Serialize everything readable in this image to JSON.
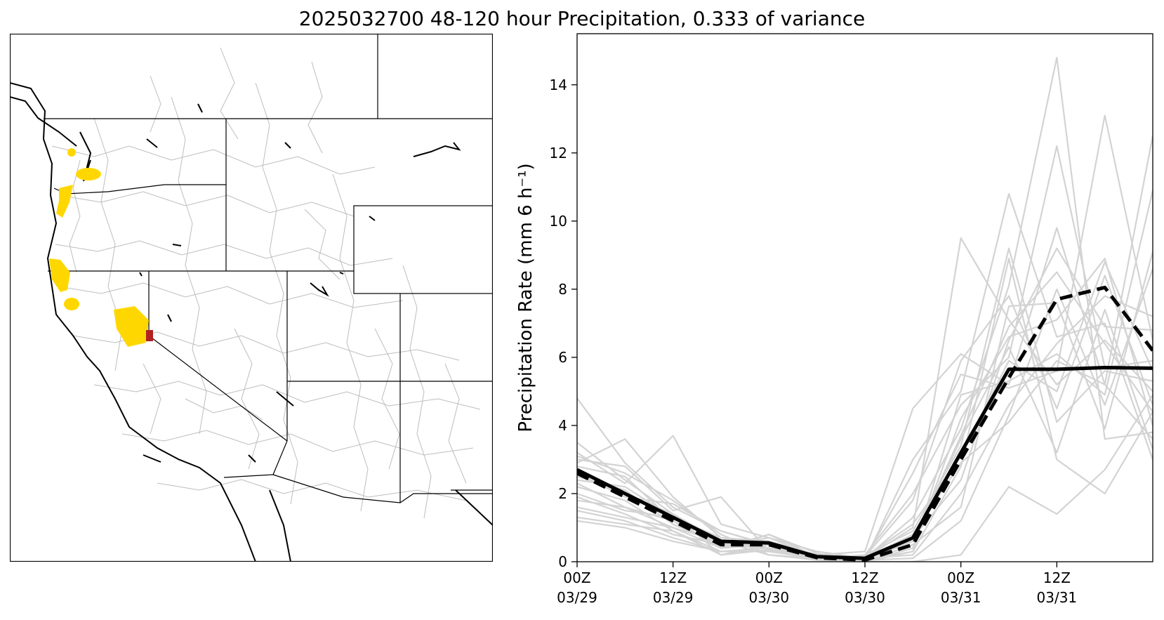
{
  "figure": {
    "title": "2025032700 48-120 hour Precipitation, 0.333 of variance"
  },
  "map": {
    "highlight_color": "#FFD700",
    "marker_color": "#B22222",
    "basin_line_color": "#BDBDBD"
  },
  "chart_data": {
    "type": "line",
    "title": "2025032700 48-120 hour Precipitation, 0.333 of variance",
    "xlabel": "",
    "ylabel": "Precipitation Rate (mm 6 h⁻¹)",
    "ylim": [
      0,
      15.5
    ],
    "y_ticks": [
      0,
      2,
      4,
      6,
      8,
      10,
      12,
      14
    ],
    "x_hours": [
      0,
      6,
      12,
      18,
      24,
      30,
      36,
      42,
      48,
      54,
      60,
      66,
      72
    ],
    "x_ticks": [
      {
        "hour": 0,
        "line1": "00Z",
        "line2": "03/29"
      },
      {
        "hour": 12,
        "line1": "12Z",
        "line2": "03/29"
      },
      {
        "hour": 24,
        "line1": "00Z",
        "line2": "03/30"
      },
      {
        "hour": 36,
        "line1": "12Z",
        "line2": "03/30"
      },
      {
        "hour": 48,
        "line1": "00Z",
        "line2": "03/31"
      },
      {
        "hour": 60,
        "line1": "12Z",
        "line2": "03/31"
      }
    ],
    "grid": false,
    "series": [
      {
        "style": "solid-black",
        "values": [
          2.7,
          2.0,
          1.3,
          0.6,
          0.55,
          0.15,
          0.1,
          0.7,
          3.2,
          5.65,
          5.65,
          5.7,
          5.68
        ]
      },
      {
        "style": "dashed-black",
        "values": [
          2.6,
          1.9,
          1.2,
          0.5,
          0.5,
          0.12,
          0.05,
          0.5,
          3.0,
          5.4,
          7.7,
          8.05,
          6.2
        ]
      },
      {
        "style": "ensemble-gray",
        "values": [
          4.8,
          2.9,
          1.6,
          0.9,
          0.5,
          0.2,
          0.3,
          4.5,
          6.1,
          5.2,
          9.8,
          5.2,
          12.5
        ]
      },
      {
        "style": "ensemble-gray",
        "values": [
          3.5,
          2.4,
          1.4,
          0.6,
          0.4,
          0.1,
          0.1,
          1.0,
          9.5,
          7.1,
          5.2,
          6.5,
          5.0
        ]
      },
      {
        "style": "ensemble-gray",
        "values": [
          3.2,
          2.3,
          3.7,
          1.1,
          0.7,
          0.15,
          0.05,
          0.6,
          3.7,
          6.9,
          8.5,
          6.4,
          4.4
        ]
      },
      {
        "style": "ensemble-gray",
        "values": [
          3.0,
          2.8,
          1.5,
          1.9,
          0.3,
          0.1,
          0.05,
          3.0,
          5.0,
          10.8,
          6.6,
          7.0,
          3.0
        ]
      },
      {
        "style": "ensemble-gray",
        "values": [
          2.9,
          3.6,
          1.9,
          0.7,
          0.6,
          0.2,
          0.15,
          1.8,
          5.9,
          7.8,
          4.5,
          8.4,
          4.6
        ]
      },
      {
        "style": "ensemble-gray",
        "values": [
          2.8,
          2.5,
          1.2,
          0.4,
          0.8,
          0.25,
          0.0,
          0.4,
          4.2,
          6.6,
          7.1,
          8.9,
          4.0
        ]
      },
      {
        "style": "ensemble-gray",
        "values": [
          2.6,
          1.9,
          1.7,
          0.9,
          0.5,
          0.1,
          0.2,
          2.0,
          4.6,
          6.0,
          12.2,
          5.7,
          5.9
        ]
      },
      {
        "style": "ensemble-gray",
        "values": [
          2.5,
          2.1,
          1.1,
          0.5,
          0.7,
          0.3,
          0.1,
          2.6,
          5.5,
          5.1,
          5.6,
          13.1,
          6.5
        ]
      },
      {
        "style": "ensemble-gray",
        "values": [
          2.4,
          2.2,
          1.3,
          0.6,
          0.4,
          0.15,
          0.1,
          1.3,
          3.9,
          8.1,
          14.8,
          3.6,
          3.8
        ]
      },
      {
        "style": "ensemble-gray",
        "values": [
          2.3,
          1.6,
          1.0,
          0.4,
          0.5,
          0.05,
          0.2,
          0.9,
          3.4,
          9.2,
          4.1,
          5.6,
          5.3
        ]
      },
      {
        "style": "ensemble-gray",
        "values": [
          2.2,
          1.8,
          0.9,
          0.3,
          0.3,
          0.1,
          0.0,
          0.3,
          2.8,
          8.9,
          3.0,
          2.0,
          4.4
        ]
      },
      {
        "style": "ensemble-gray",
        "values": [
          2.0,
          1.5,
          1.3,
          0.7,
          0.6,
          0.2,
          0.05,
          0.7,
          2.4,
          6.5,
          9.2,
          6.9,
          6.8
        ]
      },
      {
        "style": "ensemble-gray",
        "values": [
          1.9,
          1.4,
          0.8,
          0.5,
          0.4,
          0.1,
          0.1,
          0.2,
          2.0,
          4.6,
          6.4,
          7.8,
          7.2
        ]
      },
      {
        "style": "ensemble-gray",
        "values": [
          1.8,
          1.6,
          1.2,
          0.4,
          0.8,
          0.15,
          0.15,
          1.1,
          3.1,
          5.9,
          5.0,
          8.8,
          5.6
        ]
      },
      {
        "style": "ensemble-gray",
        "values": [
          1.6,
          1.3,
          1.0,
          0.6,
          0.2,
          0.05,
          0.0,
          0.5,
          1.6,
          7.5,
          7.6,
          3.9,
          9.1
        ]
      },
      {
        "style": "ensemble-gray",
        "values": [
          1.5,
          1.2,
          0.7,
          0.3,
          0.3,
          0.1,
          0.05,
          0.3,
          4.9,
          5.3,
          6.1,
          4.9,
          10.9
        ]
      },
      {
        "style": "ensemble-gray",
        "values": [
          1.3,
          1.1,
          0.9,
          0.2,
          0.5,
          0.2,
          0.1,
          0.8,
          2.9,
          4.1,
          5.9,
          5.2,
          3.6
        ]
      },
      {
        "style": "ensemble-gray",
        "values": [
          1.2,
          1.0,
          0.6,
          0.3,
          0.4,
          0.05,
          0.0,
          0.0,
          0.2,
          2.2,
          1.4,
          2.7,
          4.9
        ]
      },
      {
        "style": "ensemble-gray",
        "values": [
          3.1,
          2.6,
          1.8,
          0.8,
          0.2,
          0.1,
          0.05,
          0.1,
          1.2,
          4.3,
          8.0,
          4.6,
          8.6
        ]
      },
      {
        "style": "ensemble-gray",
        "values": [
          2.7,
          2.0,
          1.4,
          0.2,
          0.35,
          0.05,
          0.1,
          0.6,
          3.6,
          6.3,
          3.2,
          7.4,
          3.3
        ]
      }
    ]
  }
}
